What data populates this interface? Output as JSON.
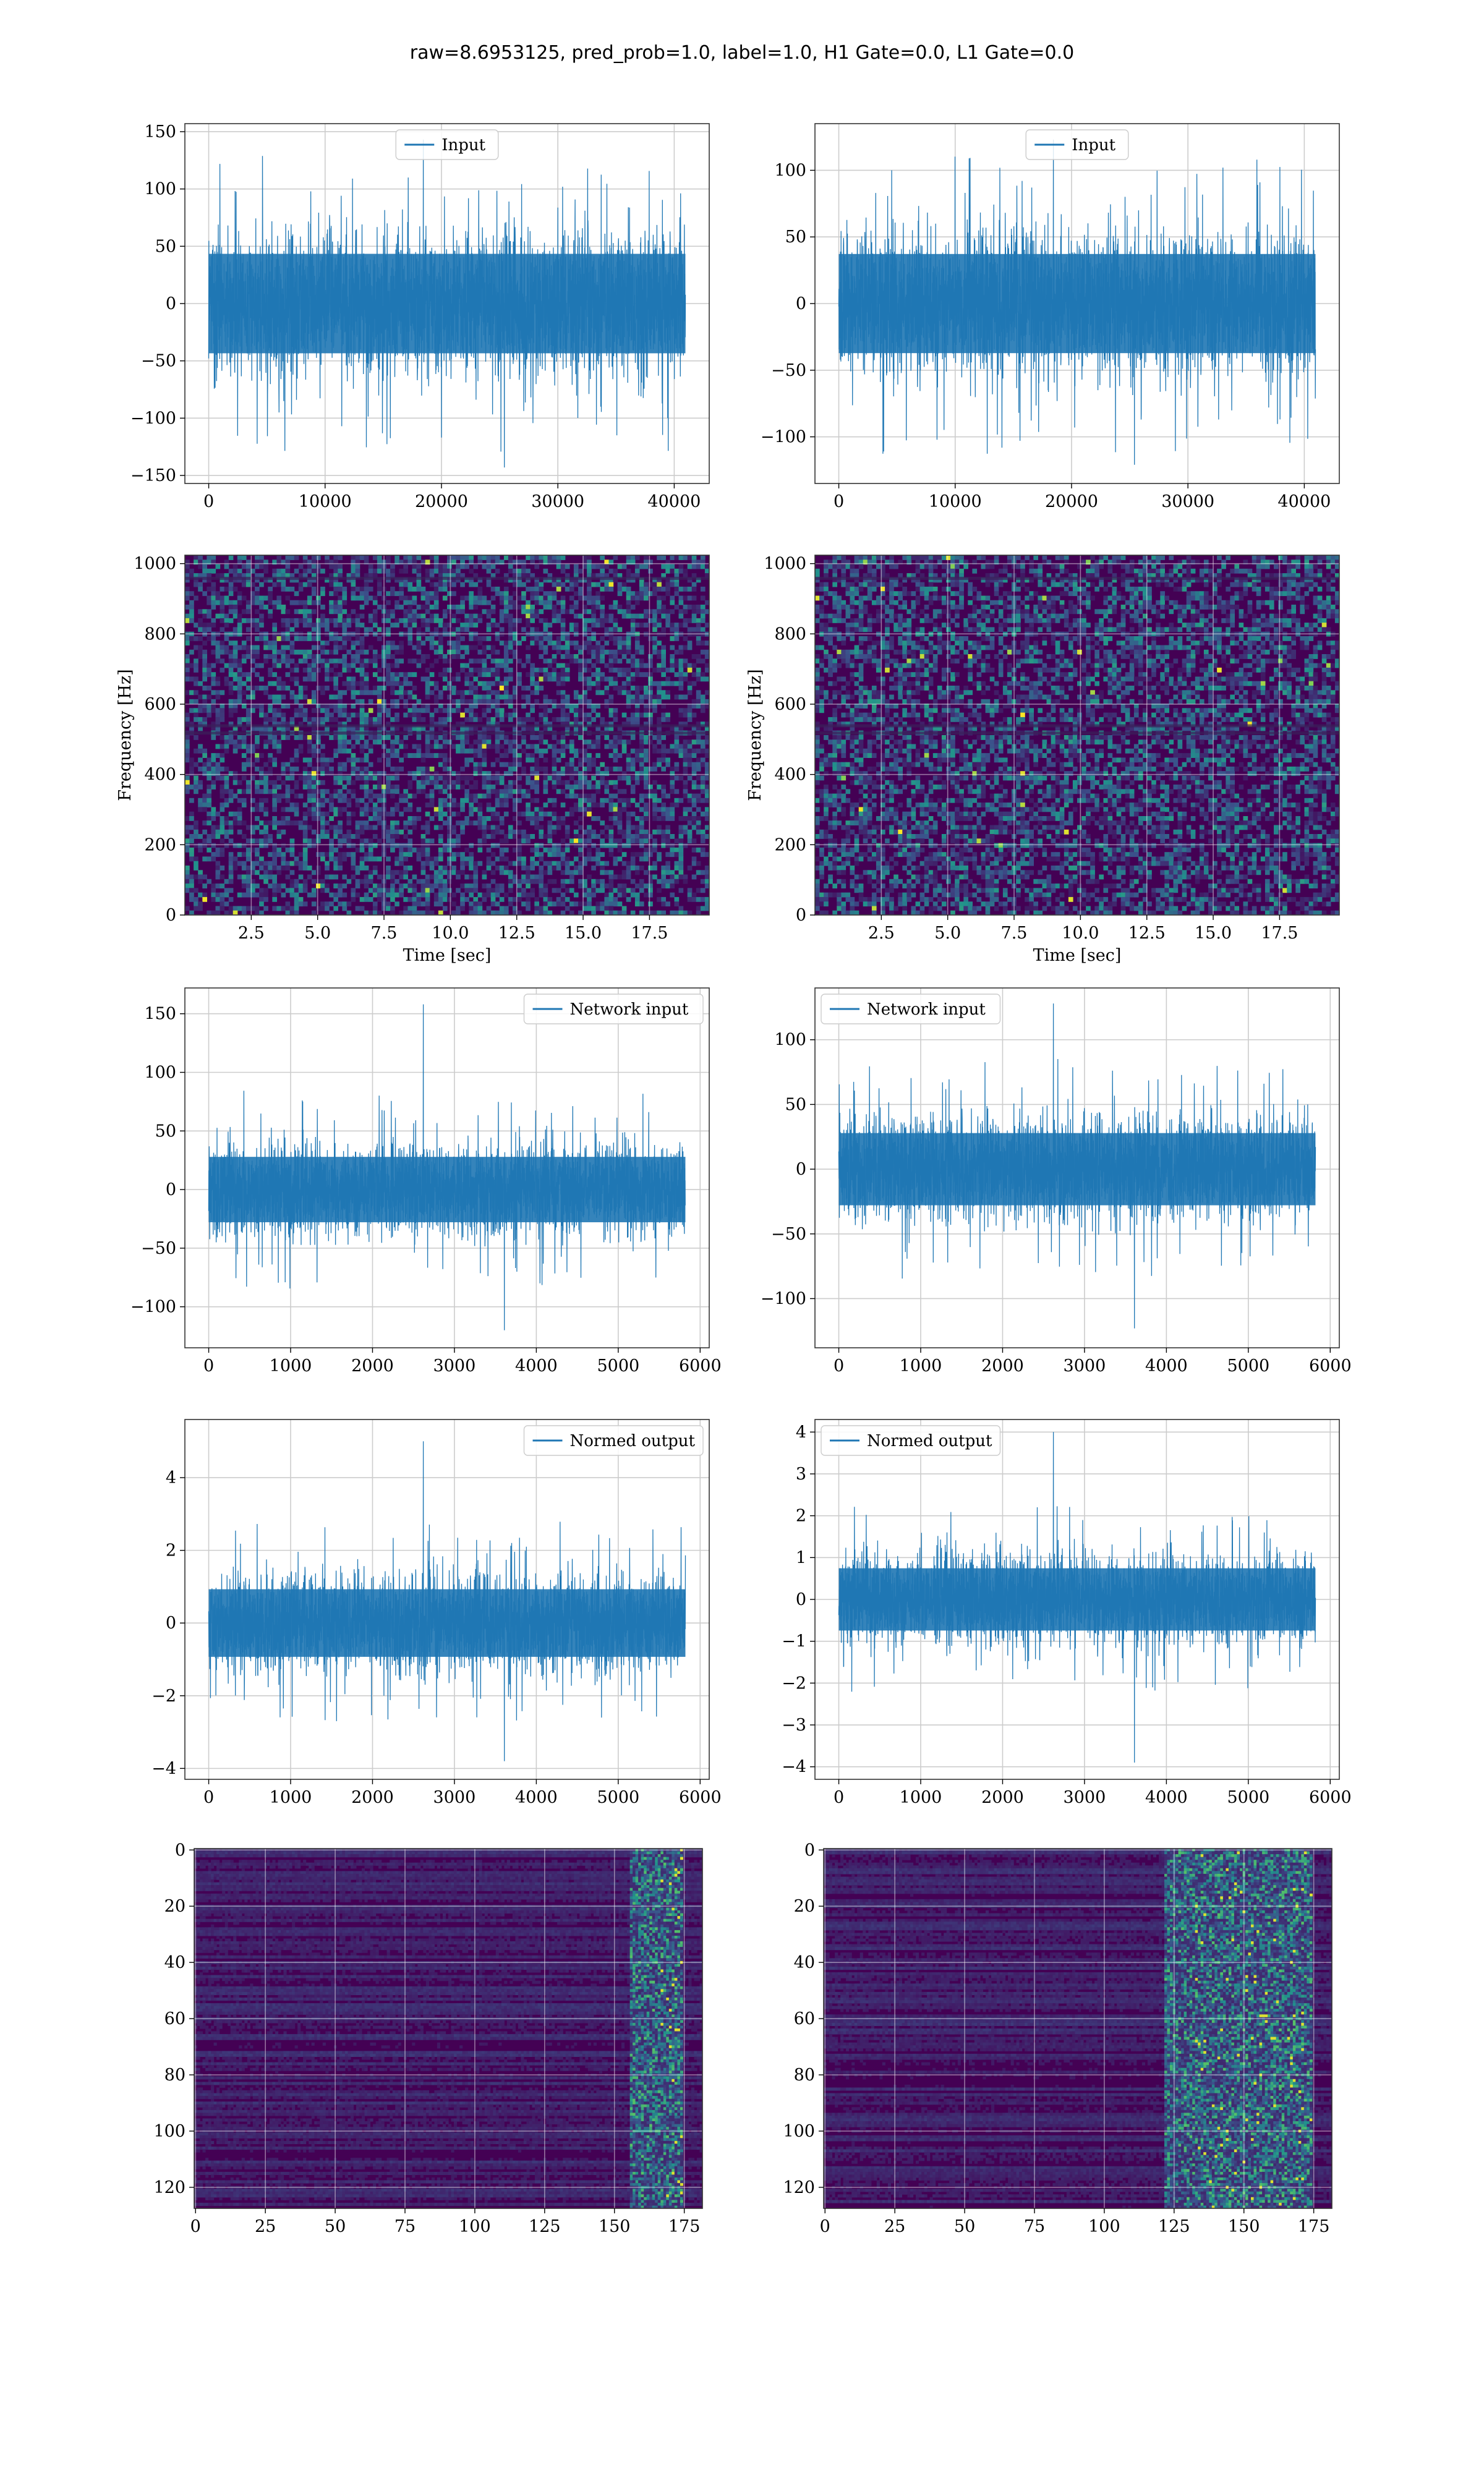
{
  "figure": {
    "title": "raw=8.6953125, pred_prob=1.0, label=1.0, H1 Gate=0.0, L1 Gate=0.0"
  },
  "colors": {
    "series": "#1f77b4",
    "grid": "#cccccc",
    "viridis": [
      "#440154",
      "#3b528b",
      "#21918c",
      "#5ec962",
      "#fde725"
    ]
  },
  "chart_data": [
    {
      "id": "input-h1",
      "type": "line",
      "title": "",
      "xlabel": "",
      "ylabel": "",
      "legend": {
        "label": "Input",
        "placement": "top-center"
      },
      "x_range": [
        0,
        40960
      ],
      "xlim": [
        -2048,
        43008
      ],
      "ylim": [
        -157,
        157
      ],
      "xticks": [
        0,
        10000,
        20000,
        30000,
        40000
      ],
      "yticks": [
        -150,
        -100,
        -50,
        0,
        50,
        100,
        150
      ],
      "envelope": {
        "min": -143,
        "max": 143,
        "typical_abs": 70
      },
      "grid": true
    },
    {
      "id": "input-l1",
      "type": "line",
      "title": "",
      "xlabel": "",
      "ylabel": "",
      "legend": {
        "label": "Input",
        "placement": "top-center"
      },
      "x_range": [
        0,
        40960
      ],
      "xlim": [
        -2048,
        43008
      ],
      "ylim": [
        -135,
        135
      ],
      "xticks": [
        0,
        10000,
        20000,
        30000,
        40000
      ],
      "yticks": [
        -100,
        -50,
        0,
        50,
        100
      ],
      "envelope": {
        "min": -121,
        "max": 123,
        "typical_abs": 60
      },
      "grid": true
    },
    {
      "id": "spec-h1",
      "type": "heatmap",
      "title": "",
      "xlabel": "Time [sec]",
      "ylabel": "Frequency [Hz]",
      "xlim": [
        0,
        19.75
      ],
      "ylim": [
        0,
        1024
      ],
      "xticks": [
        2.5,
        5.0,
        7.5,
        10.0,
        12.5,
        15.0,
        17.5
      ],
      "yticks": [
        0,
        200,
        400,
        600,
        800,
        1000
      ],
      "grid": true
    },
    {
      "id": "spec-l1",
      "type": "heatmap",
      "title": "",
      "xlabel": "Time [sec]",
      "ylabel": "Frequency [Hz]",
      "xlim": [
        0,
        19.75
      ],
      "ylim": [
        0,
        1024
      ],
      "xticks": [
        2.5,
        5.0,
        7.5,
        10.0,
        12.5,
        15.0,
        17.5
      ],
      "yticks": [
        0,
        200,
        400,
        600,
        800,
        1000
      ],
      "grid": true
    },
    {
      "id": "netin-h1",
      "type": "line",
      "title": "",
      "xlabel": "",
      "ylabel": "",
      "legend": {
        "label": "Network input",
        "placement": "top-right"
      },
      "x_range": [
        0,
        5820
      ],
      "xlim": [
        -291,
        6111
      ],
      "ylim": [
        -135,
        172
      ],
      "xticks": [
        0,
        1000,
        2000,
        3000,
        4000,
        5000,
        6000
      ],
      "yticks": [
        -100,
        -50,
        0,
        50,
        100,
        150
      ],
      "envelope": {
        "min": -120,
        "max": 158,
        "typical_abs": 45
      },
      "grid": true
    },
    {
      "id": "netin-l1",
      "type": "line",
      "title": "",
      "xlabel": "",
      "ylabel": "",
      "legend": {
        "label": "Network input",
        "placement": "top-left"
      },
      "x_range": [
        0,
        5820
      ],
      "xlim": [
        -291,
        6111
      ],
      "ylim": [
        -138,
        140
      ],
      "xticks": [
        0,
        1000,
        2000,
        3000,
        4000,
        5000,
        6000
      ],
      "yticks": [
        -100,
        -50,
        0,
        50,
        100
      ],
      "envelope": {
        "min": -123,
        "max": 128,
        "typical_abs": 45
      },
      "grid": true
    },
    {
      "id": "normed-h1",
      "type": "line",
      "title": "",
      "xlabel": "",
      "ylabel": "",
      "legend": {
        "label": "Normed output",
        "placement": "top-right"
      },
      "x_range": [
        0,
        5820
      ],
      "xlim": [
        -291,
        6111
      ],
      "ylim": [
        -4.3,
        5.6
      ],
      "xticks": [
        0,
        1000,
        2000,
        3000,
        4000,
        5000,
        6000
      ],
      "yticks": [
        -4,
        -2,
        0,
        2,
        4
      ],
      "envelope": {
        "min": -3.8,
        "max": 5.0,
        "typical_abs": 1.5
      },
      "grid": true
    },
    {
      "id": "normed-l1",
      "type": "line",
      "title": "",
      "xlabel": "",
      "ylabel": "",
      "legend": {
        "label": "Normed output",
        "placement": "top-left"
      },
      "x_range": [
        0,
        5820
      ],
      "xlim": [
        -291,
        6111
      ],
      "ylim": [
        -4.3,
        4.3
      ],
      "xticks": [
        0,
        1000,
        2000,
        3000,
        4000,
        5000,
        6000
      ],
      "yticks": [
        -4,
        -3,
        -2,
        -1,
        0,
        1,
        2,
        3,
        4
      ],
      "envelope": {
        "min": -3.9,
        "max": 4.0,
        "typical_abs": 1.2
      },
      "grid": true
    },
    {
      "id": "feat-h1",
      "type": "heatmap",
      "title": "",
      "xlabel": "",
      "ylabel": "",
      "xlim": [
        -0.5,
        181.5
      ],
      "ylim": [
        127.5,
        -0.5
      ],
      "xticks": [
        0,
        25,
        50,
        75,
        100,
        125,
        150,
        175
      ],
      "yticks": [
        0,
        20,
        40,
        60,
        80,
        100,
        120
      ],
      "hot_columns": [
        155,
        175
      ],
      "grid": true
    },
    {
      "id": "feat-l1",
      "type": "heatmap",
      "title": "",
      "xlabel": "",
      "ylabel": "",
      "xlim": [
        -0.5,
        181.5
      ],
      "ylim": [
        127.5,
        -0.5
      ],
      "xticks": [
        0,
        25,
        50,
        75,
        100,
        125,
        150,
        175
      ],
      "yticks": [
        0,
        20,
        40,
        60,
        80,
        100,
        120
      ],
      "hot_columns": [
        122,
        175
      ],
      "grid": true
    }
  ]
}
